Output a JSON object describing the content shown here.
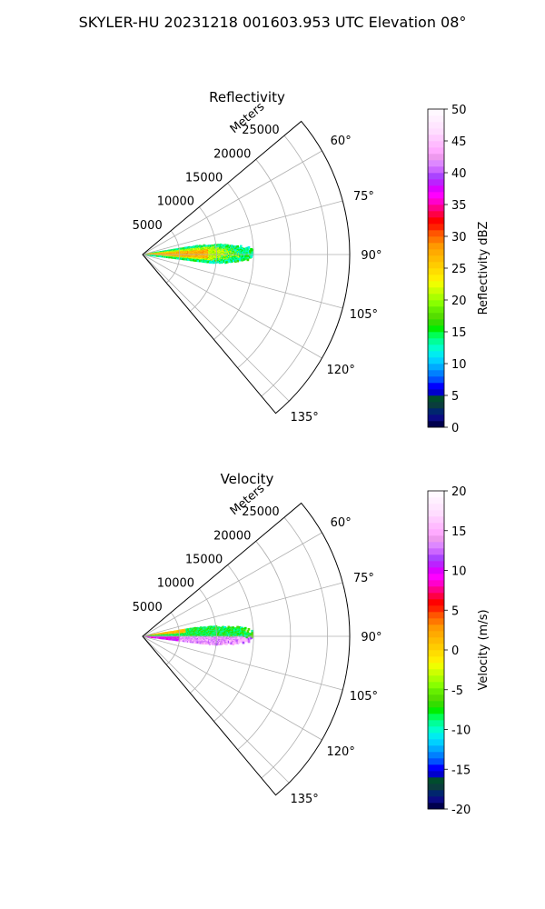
{
  "figure": {
    "suptitle": "SKYLER-HU  20231218  001603.953 UTC Elevation 08°"
  },
  "chart_data": [
    {
      "type": "heatmap",
      "subtype": "polar-sector radar PPI",
      "title": "Reflectivity",
      "range_label": "Meters",
      "range_ticks": [
        5000,
        10000,
        15000,
        20000,
        25000
      ],
      "rlim": [
        0,
        28000
      ],
      "theta_ticks_deg": [
        60,
        75,
        90,
        105,
        120,
        135
      ],
      "theta_tick_labels": [
        "60°",
        "75°",
        "90°",
        "105°",
        "120°",
        "135°"
      ],
      "theta_range_deg": [
        50,
        140
      ],
      "grid": true,
      "colorbar": {
        "label": "Reflectivity dBZ",
        "range": [
          0,
          50
        ],
        "ticks": [
          0,
          5,
          10,
          15,
          20,
          25,
          30,
          35,
          40,
          45,
          50
        ],
        "colors": [
          "#00004d",
          "#0b0b84",
          "#00266e",
          "#0a3d3d",
          "#004d2d",
          "#0000cc",
          "#0000ff",
          "#0050ff",
          "#0080ff",
          "#00aaff",
          "#00d0ff",
          "#00ecf0",
          "#00ffcc",
          "#00ff99",
          "#00ff55",
          "#00ee00",
          "#33dd00",
          "#55dd00",
          "#66ee00",
          "#88ff00",
          "#aaff00",
          "#ccff00",
          "#eeff00",
          "#ffee00",
          "#ffdd00",
          "#ffcc00",
          "#ffbb00",
          "#ffaa00",
          "#ff9900",
          "#ff7700",
          "#ff5500",
          "#ff2200",
          "#ff0000",
          "#ff0044",
          "#ff0088",
          "#ff00cc",
          "#ff00ff",
          "#dd00ff",
          "#bb22ff",
          "#aa44ff",
          "#cc66ff",
          "#dd88ff",
          "#ee99ee",
          "#ffaaff",
          "#ffbbff",
          "#ffccff",
          "#ffddff",
          "#ffe6ff",
          "#fff0ff",
          "#fff8ff"
        ]
      },
      "echo_region": {
        "angle_deg": [
          81,
          97
        ],
        "range_m": [
          0,
          15000
        ],
        "dominant_values_dbz": {
          "core": 27,
          "mid": 21,
          "edge": 14
        },
        "core_angle_deg": [
          86,
          94
        ],
        "core_range_m": [
          0,
          9000
        ]
      }
    },
    {
      "type": "heatmap",
      "subtype": "polar-sector radar PPI",
      "title": "Velocity",
      "range_label": "Meters",
      "range_ticks": [
        5000,
        10000,
        15000,
        20000,
        25000
      ],
      "rlim": [
        0,
        28000
      ],
      "theta_ticks_deg": [
        60,
        75,
        90,
        105,
        120,
        135
      ],
      "theta_tick_labels": [
        "60°",
        "75°",
        "90°",
        "105°",
        "120°",
        "135°"
      ],
      "theta_range_deg": [
        50,
        140
      ],
      "grid": true,
      "colorbar": {
        "label": "Velocity (m/s)",
        "range": [
          -20,
          20
        ],
        "ticks": [
          -20,
          -15,
          -10,
          -5,
          0,
          5,
          10,
          15,
          20
        ],
        "colors": [
          "#00004d",
          "#0b0b84",
          "#00266e",
          "#0a3d3d",
          "#004d2d",
          "#0000cc",
          "#0000ff",
          "#0050ff",
          "#0080ff",
          "#00aaff",
          "#00d0ff",
          "#00ecf0",
          "#00ffcc",
          "#00ff99",
          "#00ff55",
          "#00ee00",
          "#33dd00",
          "#55dd00",
          "#66ee00",
          "#88ff00",
          "#aaff00",
          "#ccff00",
          "#eeff00",
          "#ffee00",
          "#ffdd00",
          "#ffcc00",
          "#ffbb00",
          "#ffaa00",
          "#ff9900",
          "#ff7700",
          "#ff5500",
          "#ff2200",
          "#ff0000",
          "#ff0044",
          "#ff0088",
          "#ff00cc",
          "#ff00ff",
          "#dd00ff",
          "#bb22ff",
          "#aa44ff",
          "#cc66ff",
          "#dd88ff",
          "#ee99ee",
          "#ffaaff",
          "#ffbbff",
          "#ffccff",
          "#ffddff",
          "#ffe6ff",
          "#fff0ff",
          "#fff8ff"
        ]
      },
      "echo_region": {
        "angle_deg": [
          81,
          97
        ],
        "range_m": [
          0,
          15000
        ],
        "left_side_velocity_ms": -8,
        "right_side_velocity_ms": 14,
        "near_right_velocity_ms": 10,
        "near_left_velocity_ms": 1
      }
    }
  ]
}
